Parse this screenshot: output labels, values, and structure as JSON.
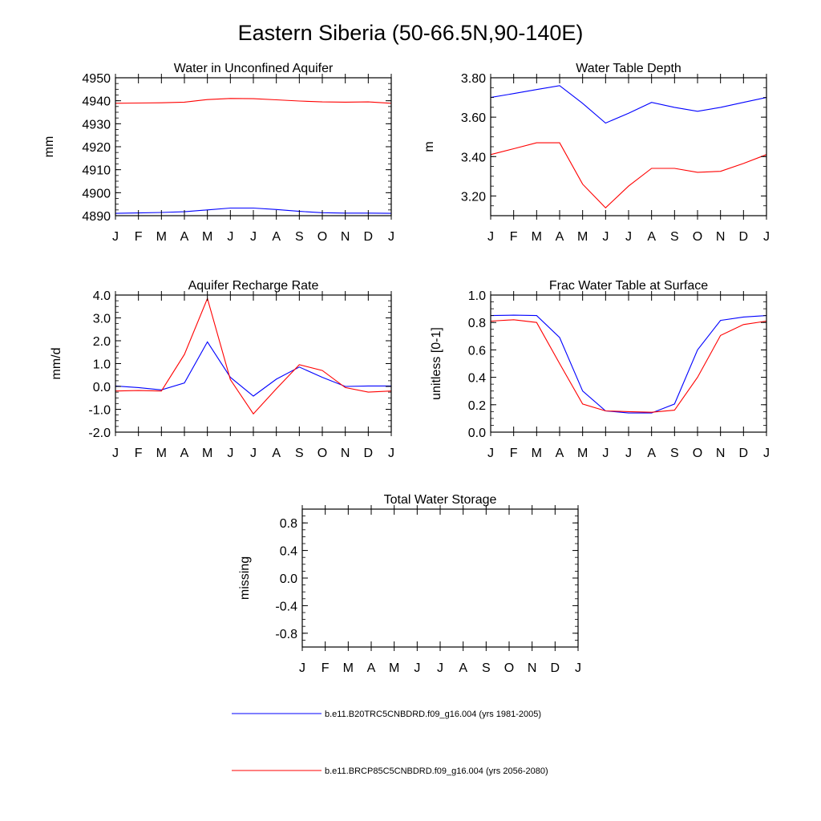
{
  "figure": {
    "title": "Eastern Siberia (50-66.5N,90-140E)",
    "colors": {
      "series_1": "#0000ff",
      "series_2": "#ff0000",
      "axes": "#000000"
    },
    "legend": {
      "placement": "bottom",
      "entries": [
        {
          "label": "b.e11.B20TRC5CNBDRD.f09_g16.004 (yrs 1981-2005)",
          "color": "#0000ff"
        },
        {
          "label": "b.e11.BRCP85C5CNBDRD.f09_g16.004 (yrs 2056-2080)",
          "color": "#ff0000"
        }
      ]
    }
  },
  "chart_data": [
    {
      "type": "line",
      "title": "Water in Unconfined Aquifer",
      "ylabel": "mm",
      "xlabel": "",
      "x": [
        "J",
        "F",
        "M",
        "A",
        "M",
        "J",
        "J",
        "A",
        "S",
        "O",
        "N",
        "D",
        "J"
      ],
      "ylim": [
        4890,
        4950
      ],
      "yticks": [
        4890,
        4900,
        4910,
        4920,
        4930,
        4940,
        4950
      ],
      "ytick_labels": [
        "4890",
        "4900",
        "4910",
        "4920",
        "4930",
        "4940",
        "4950"
      ],
      "grid": false,
      "series": [
        {
          "color": "#0000ff",
          "values": [
            4891.0,
            4891.2,
            4891.4,
            4891.7,
            4892.5,
            4893.3,
            4893.3,
            4892.7,
            4891.9,
            4891.3,
            4891.1,
            4891.1,
            4891.0
          ]
        },
        {
          "color": "#ff0000",
          "values": [
            4938.9,
            4939.0,
            4939.1,
            4939.4,
            4940.5,
            4941.0,
            4940.9,
            4940.4,
            4939.9,
            4939.5,
            4939.4,
            4939.5,
            4938.9
          ]
        }
      ]
    },
    {
      "type": "line",
      "title": "Water Table Depth",
      "ylabel": "m",
      "xlabel": "",
      "x": [
        "J",
        "F",
        "M",
        "A",
        "M",
        "J",
        "J",
        "A",
        "S",
        "O",
        "N",
        "D",
        "J"
      ],
      "ylim": [
        3.1,
        3.8
      ],
      "yticks": [
        3.2,
        3.4,
        3.6,
        3.8
      ],
      "ytick_labels": [
        "3.20",
        "3.40",
        "3.60",
        "3.80"
      ],
      "grid": false,
      "series": [
        {
          "color": "#0000ff",
          "values": [
            3.7,
            3.72,
            3.74,
            3.76,
            3.67,
            3.57,
            3.62,
            3.675,
            3.65,
            3.63,
            3.65,
            3.675,
            3.7
          ]
        },
        {
          "color": "#ff0000",
          "values": [
            3.41,
            3.44,
            3.47,
            3.47,
            3.26,
            3.14,
            3.25,
            3.34,
            3.34,
            3.32,
            3.325,
            3.365,
            3.41
          ]
        }
      ]
    },
    {
      "type": "line",
      "title": "Aquifer Recharge Rate",
      "ylabel": "mm/d",
      "xlabel": "",
      "x": [
        "J",
        "F",
        "M",
        "A",
        "M",
        "J",
        "J",
        "A",
        "S",
        "O",
        "N",
        "D",
        "J"
      ],
      "ylim": [
        -2.0,
        4.0
      ],
      "yticks": [
        -2.0,
        -1.0,
        0.0,
        1.0,
        2.0,
        3.0,
        4.0
      ],
      "ytick_labels": [
        "-2.0",
        "-1.0",
        "0.0",
        "1.0",
        "2.0",
        "3.0",
        "4.0"
      ],
      "grid": false,
      "series": [
        {
          "color": "#0000ff",
          "values": [
            0.02,
            -0.05,
            -0.15,
            0.15,
            1.95,
            0.4,
            -0.42,
            0.32,
            0.85,
            0.4,
            0.0,
            0.02,
            0.02
          ]
        },
        {
          "color": "#ff0000",
          "values": [
            -0.2,
            -0.18,
            -0.2,
            1.4,
            3.85,
            0.3,
            -1.2,
            -0.1,
            0.95,
            0.7,
            -0.05,
            -0.25,
            -0.2
          ]
        }
      ]
    },
    {
      "type": "line",
      "title": "Frac Water Table at Surface",
      "ylabel": "unitless [0-1]",
      "xlabel": "",
      "x": [
        "J",
        "F",
        "M",
        "A",
        "M",
        "J",
        "J",
        "A",
        "S",
        "O",
        "N",
        "D",
        "J"
      ],
      "ylim": [
        0.0,
        1.0
      ],
      "yticks": [
        0.0,
        0.2,
        0.4,
        0.6,
        0.8,
        1.0
      ],
      "ytick_labels": [
        "0.0",
        "0.2",
        "0.4",
        "0.6",
        "0.8",
        "1.0"
      ],
      "grid": false,
      "series": [
        {
          "color": "#0000ff",
          "values": [
            0.85,
            0.853,
            0.85,
            0.69,
            0.3,
            0.155,
            0.14,
            0.14,
            0.205,
            0.6,
            0.815,
            0.84,
            0.85
          ]
        },
        {
          "color": "#ff0000",
          "values": [
            0.81,
            0.82,
            0.8,
            0.5,
            0.205,
            0.155,
            0.15,
            0.145,
            0.16,
            0.4,
            0.705,
            0.785,
            0.81
          ]
        }
      ]
    },
    {
      "type": "line",
      "title": "Total Water Storage",
      "ylabel": "missing",
      "xlabel": "",
      "x": [
        "J",
        "F",
        "M",
        "A",
        "M",
        "J",
        "J",
        "A",
        "S",
        "O",
        "N",
        "D",
        "J"
      ],
      "ylim": [
        -1.0,
        1.0
      ],
      "yticks": [
        -0.8,
        -0.4,
        0.0,
        0.4,
        0.8
      ],
      "ytick_labels": [
        "-0.8",
        "-0.4",
        "0.0",
        "0.4",
        "0.8"
      ],
      "grid": false,
      "series": []
    }
  ]
}
